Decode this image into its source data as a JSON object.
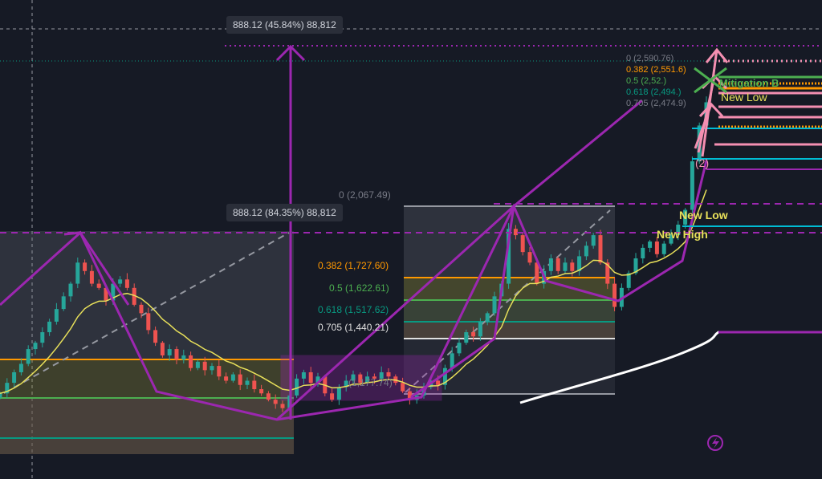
{
  "chart_data": {
    "type": "candlestick",
    "y_unit": "price",
    "ylim": [
      774,
      3045
    ],
    "closes": [
      1180,
      1230,
      1280,
      1320,
      1390,
      1420,
      1470,
      1520,
      1580,
      1640,
      1700,
      1800,
      1760,
      1700,
      1680,
      1620,
      1700,
      1720,
      1680,
      1600,
      1560,
      1480,
      1420,
      1360,
      1390,
      1340,
      1360,
      1300,
      1330,
      1290,
      1310,
      1260,
      1240,
      1270,
      1220,
      1240,
      1200,
      1180,
      1150,
      1130,
      1110,
      1170,
      1250,
      1280,
      1230,
      1260,
      1180,
      1150,
      1210,
      1240,
      1270,
      1230,
      1260,
      1250,
      1280,
      1260,
      1230,
      1190,
      1150,
      1170,
      1210,
      1240,
      1220,
      1300,
      1370,
      1420,
      1470,
      1450,
      1520,
      1560,
      1640,
      1700,
      1960,
      1930,
      1850,
      1800,
      1700,
      1760,
      1820,
      1760,
      1800,
      1760,
      1830,
      1880,
      1930,
      1800,
      1700,
      1590,
      1680,
      1750,
      1820,
      1870,
      1900,
      1840,
      1890,
      1930,
      1980,
      2050,
      2280,
      2450,
      2560
    ],
    "colors": {
      "up": "#26a69a",
      "down": "#ef5350",
      "ma": "#e8e05a",
      "drawing": "#9c27b0",
      "fib_0382": "#ff9800",
      "fib_05": "#4caf50",
      "fib_0618": "#089981",
      "fib_0705": "#e0e0e0",
      "pink": "#f48fb1",
      "cyan": "#00bcd4"
    },
    "fib_levels": [
      {
        "label": "0 (2,067.49)",
        "price": 2067.49
      },
      {
        "label": "0.382 (1,727.60)",
        "price": 1727.6
      },
      {
        "label": "0.5 (1,622.61)",
        "price": 1622.61
      },
      {
        "label": "0.618 (1,517.62)",
        "price": 1517.62
      },
      {
        "label": "0.705 (1,440.21)",
        "price": 1440.21
      }
    ],
    "fib_low_label": "(1,177.74)",
    "fib2_labels": [
      "0 (2,590.76)",
      "0.382 (2,551.6)",
      "0.5 (2,52.)",
      "0.618 (2,494.)",
      "0.705 (2,474.9)"
    ],
    "measure_labels": [
      "888.12 (45.84%) 88,812",
      "888.12 (84.35%) 88,812"
    ],
    "annotations": {
      "new_low_1": "New Low",
      "new_low_2": "New Low",
      "new_high": "New High",
      "mitigation": "Mitigation B",
      "wave": "(2)"
    },
    "icons": [
      "lightning-icon"
    ]
  }
}
